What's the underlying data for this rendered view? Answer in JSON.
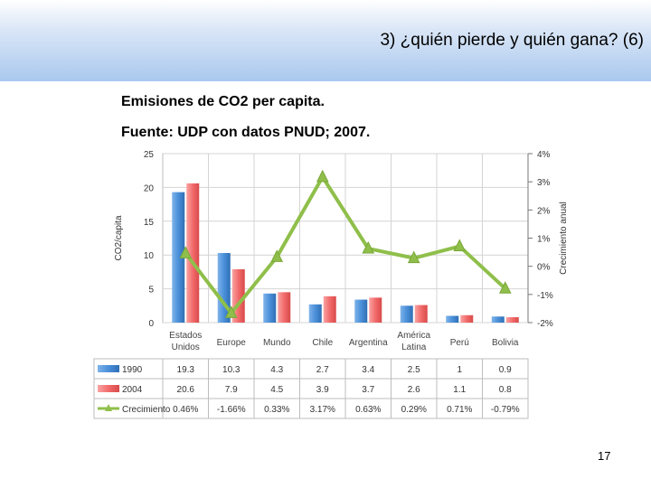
{
  "slide": {
    "title": "3) ¿quién pierde y quién gana? (6)",
    "subtitle1": "Emisiones de CO2 per capita.",
    "subtitle2": "Fuente: UDP con datos PNUD; 2007.",
    "page_number": "17"
  },
  "chart_data": {
    "type": "bar",
    "categories": [
      "Estados Unidos",
      "Europe",
      "Mundo",
      "Chile",
      "Argentina",
      "América Latina",
      "Perú",
      "Bolivia"
    ],
    "series": [
      {
        "name": "1990",
        "values": [
          19.3,
          10.3,
          4.3,
          2.7,
          3.4,
          2.5,
          1.0,
          0.9
        ],
        "labels": [
          "19.3",
          "10.3",
          "4.3",
          "2.7",
          "3.4",
          "2.5",
          "1",
          "0.9"
        ],
        "color": "#4a90d9"
      },
      {
        "name": "2004",
        "values": [
          20.6,
          7.9,
          4.5,
          3.9,
          3.7,
          2.6,
          1.1,
          0.8
        ],
        "labels": [
          "20.6",
          "7.9",
          "4.5",
          "3.9",
          "3.7",
          "2.6",
          "1.1",
          "0.8"
        ],
        "color": "#f26b6b"
      }
    ],
    "line_series": {
      "name": "Crecimiento",
      "values": [
        0.46,
        -1.66,
        0.33,
        3.17,
        0.63,
        0.29,
        0.71,
        -0.79
      ],
      "labels": [
        "0.46%",
        "-1.66%",
        "0.33%",
        "3.17%",
        "0.63%",
        "0.29%",
        "0.71%",
        "-0.79%"
      ],
      "color": "#8fbf4a"
    },
    "ylabel": "CO2/capita",
    "y2label": "Crecimiento anual",
    "ylim": [
      0,
      25
    ],
    "yticks": [
      0,
      5,
      10,
      15,
      20,
      25
    ],
    "y2lim": [
      -2,
      4
    ],
    "y2ticks": [
      "4%",
      "3%",
      "2%",
      "1%",
      "0%",
      "-1%",
      "-2%"
    ],
    "grid": true,
    "legend": "table-bottom"
  }
}
